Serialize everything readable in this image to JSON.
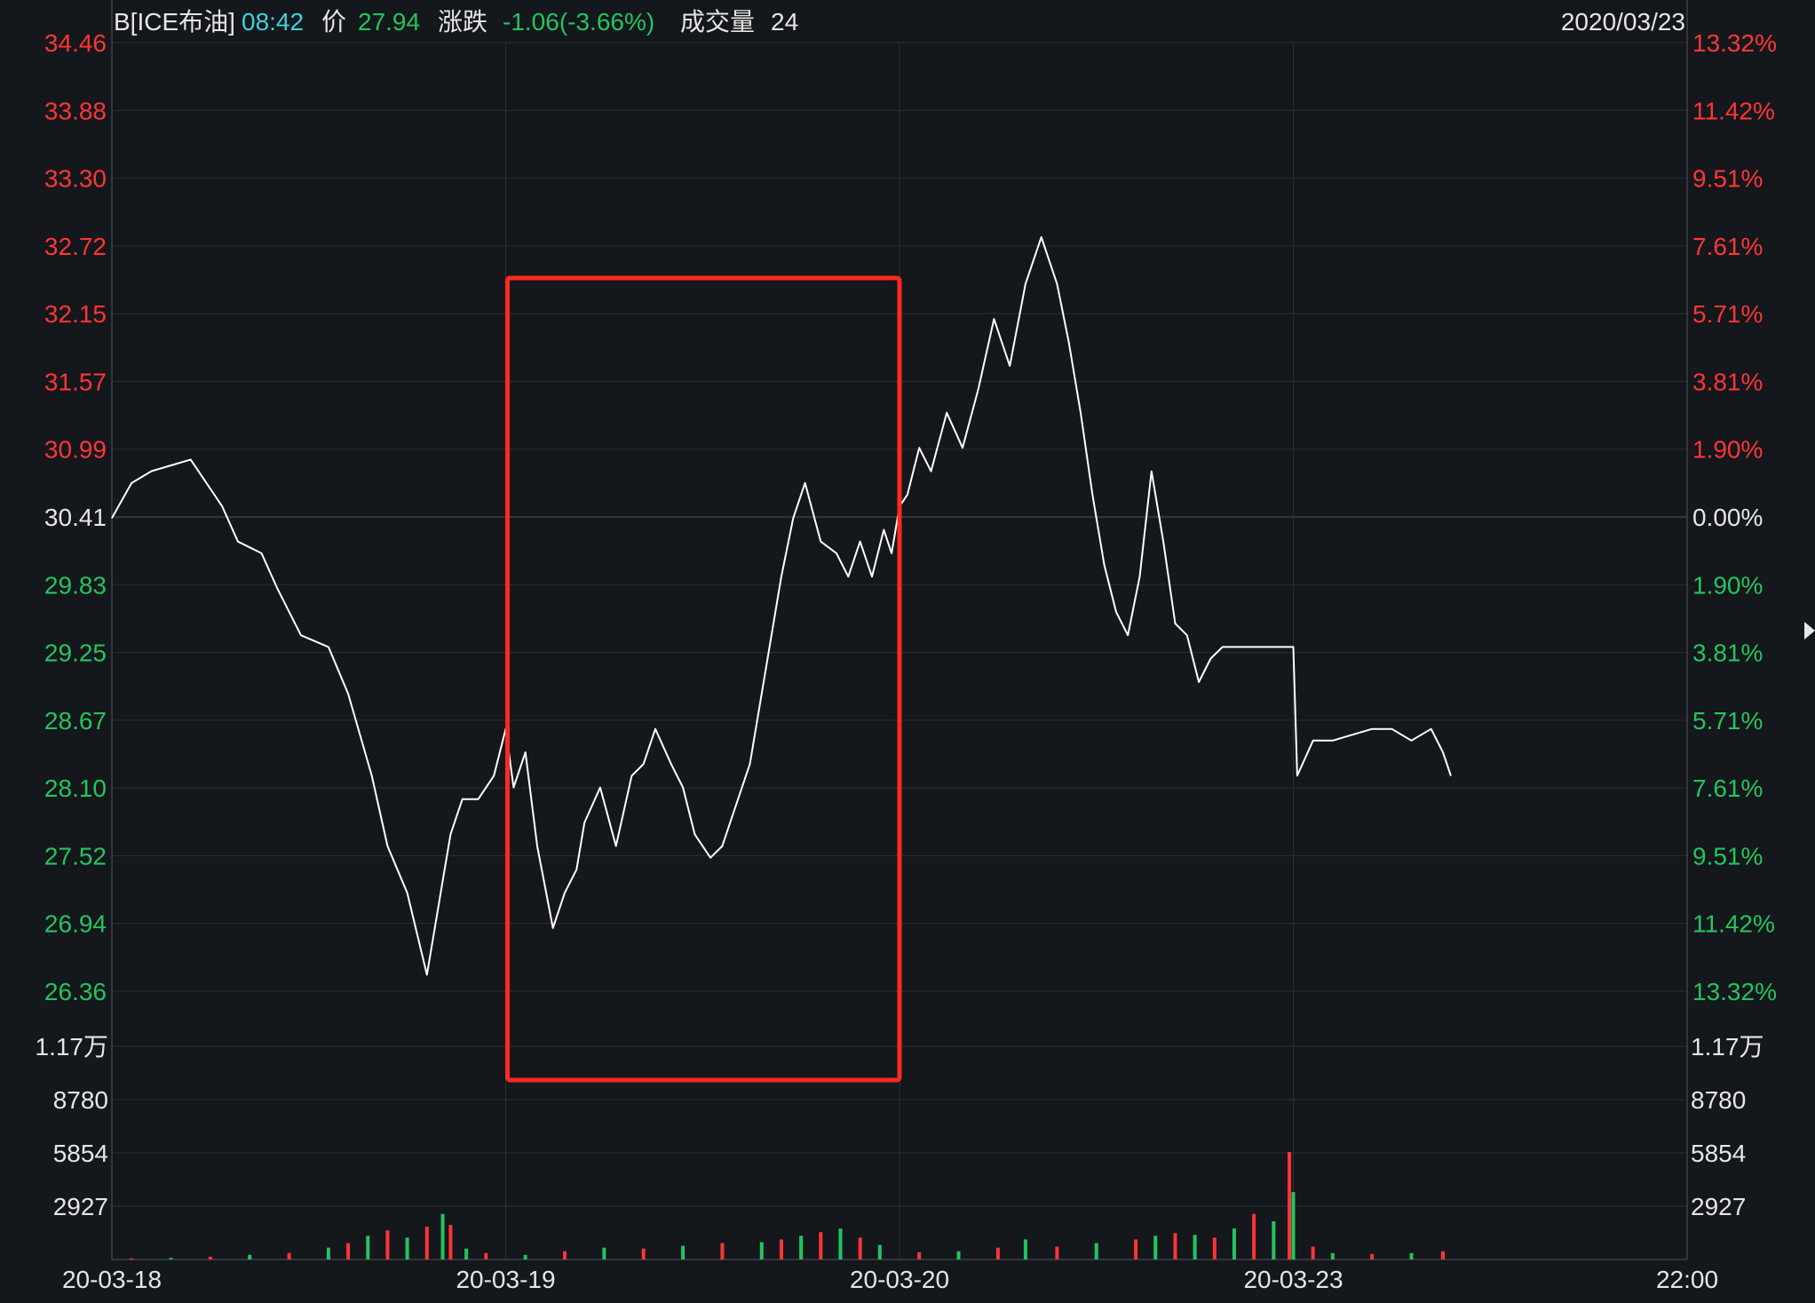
{
  "header": {
    "symbol": "B[ICE布油]",
    "time": "08:42",
    "price_label": "价",
    "price": "27.94",
    "change_label": "涨跌",
    "change": "-1.06(-3.66%)",
    "volume_label": "成交量",
    "volume": "24",
    "date": "2020/03/23"
  },
  "colors": {
    "background": "#14171c",
    "grid": "#2b2f36",
    "up": "#ff3535",
    "down": "#22c55e",
    "neutral": "#e6e6e6",
    "price_line": "#ffffff",
    "highlight_box": "#ff2a1f",
    "time_text": "#3fd1d9"
  },
  "annotation": {
    "type": "highlight-box",
    "x_start": "20-03-19",
    "x_end": "20-03-20"
  },
  "chart_data": [
    {
      "type": "line",
      "title": "",
      "y_ticks_left": [
        "34.46",
        "33.88",
        "33.30",
        "32.72",
        "32.15",
        "31.57",
        "30.99",
        "30.41",
        "29.83",
        "29.25",
        "28.67",
        "28.10",
        "27.52",
        "26.94",
        "26.36"
      ],
      "y_ticks_right": [
        "13.32%",
        "11.42%",
        "9.51%",
        "7.61%",
        "5.71%",
        "3.81%",
        "1.90%",
        "0.00%",
        "1.90%",
        "3.81%",
        "5.71%",
        "7.61%",
        "9.51%",
        "11.42%",
        "13.32%"
      ],
      "ylim": [
        26.36,
        34.46
      ],
      "reference_price": 30.41,
      "x_ticks": [
        "20-03-18",
        "20-03-19",
        "20-03-20",
        "20-03-23",
        "22:00"
      ],
      "xlim": [
        0,
        4
      ],
      "grid": true,
      "series": [
        {
          "x": [
            0.0,
            0.05,
            0.1,
            0.15,
            0.2,
            0.28,
            0.32,
            0.38,
            0.42,
            0.48,
            0.55,
            0.6,
            0.66,
            0.7,
            0.75,
            0.8,
            0.84,
            0.86,
            0.89,
            0.93,
            0.97,
            1.0,
            1.02,
            1.05,
            1.08,
            1.12,
            1.15,
            1.18,
            1.2,
            1.24,
            1.28,
            1.32,
            1.35,
            1.38,
            1.42,
            1.45,
            1.48,
            1.52,
            1.55,
            1.58,
            1.62,
            1.66,
            1.7,
            1.73,
            1.76,
            1.8,
            1.84,
            1.87,
            1.9,
            1.93,
            1.96,
            1.98,
            2.0,
            2.02,
            2.05,
            2.08,
            2.12,
            2.16,
            2.2,
            2.24,
            2.28,
            2.32,
            2.36,
            2.4,
            2.43,
            2.46,
            2.49,
            2.52,
            2.55,
            2.58,
            2.61,
            2.64,
            2.67,
            2.7,
            2.73,
            2.76,
            2.79,
            2.82,
            2.85,
            2.88,
            2.91,
            2.94,
            2.97,
            3.0,
            3.01,
            3.05,
            3.1,
            3.15,
            3.2,
            3.25,
            3.3,
            3.35,
            3.38,
            3.4
          ],
          "y": [
            30.4,
            30.7,
            30.8,
            30.85,
            30.9,
            30.5,
            30.2,
            30.1,
            29.8,
            29.4,
            29.3,
            28.9,
            28.2,
            27.6,
            27.2,
            26.5,
            27.3,
            27.7,
            28.0,
            28.0,
            28.2,
            28.6,
            28.1,
            28.4,
            27.6,
            26.9,
            27.2,
            27.4,
            27.8,
            28.1,
            27.6,
            28.2,
            28.3,
            28.6,
            28.3,
            28.1,
            27.7,
            27.5,
            27.6,
            27.9,
            28.3,
            29.1,
            29.9,
            30.4,
            30.7,
            30.2,
            30.1,
            29.9,
            30.2,
            29.9,
            30.3,
            30.1,
            30.5,
            30.6,
            31.0,
            30.8,
            31.3,
            31.0,
            31.5,
            32.1,
            31.7,
            32.4,
            32.8,
            32.4,
            31.9,
            31.3,
            30.6,
            30.0,
            29.6,
            29.4,
            29.9,
            30.8,
            30.2,
            29.5,
            29.4,
            29.0,
            29.2,
            29.3,
            29.3,
            29.3,
            29.3,
            29.3,
            29.3,
            29.3,
            28.2,
            28.5,
            28.5,
            28.55,
            28.6,
            28.6,
            28.5,
            28.6,
            28.4,
            28.2
          ]
        }
      ]
    },
    {
      "type": "bar",
      "title": "",
      "y_ticks_left": [
        "1.17万",
        "8780",
        "5854",
        "2927"
      ],
      "y_ticks_right": [
        "1.17万",
        "8780",
        "5854",
        "2927"
      ],
      "ylim": [
        0,
        11707
      ],
      "x_ticks": [
        "20-03-18",
        "20-03-19",
        "20-03-20",
        "20-03-23",
        "22:00"
      ],
      "xlim": [
        0,
        4
      ],
      "series": [
        {
          "name": "",
          "x": [
            0.05,
            0.15,
            0.25,
            0.35,
            0.45,
            0.55,
            0.6,
            0.65,
            0.7,
            0.75,
            0.8,
            0.84,
            0.86,
            0.9,
            0.95,
            1.05,
            1.15,
            1.25,
            1.35,
            1.45,
            1.55,
            1.65,
            1.7,
            1.75,
            1.8,
            1.85,
            1.9,
            1.95,
            2.05,
            2.15,
            2.25,
            2.32,
            2.4,
            2.5,
            2.6,
            2.65,
            2.7,
            2.75,
            2.8,
            2.85,
            2.9,
            2.95,
            2.99,
            3.0,
            3.05,
            3.1,
            3.2,
            3.3,
            3.38
          ],
          "values": [
            60,
            90,
            150,
            260,
            360,
            650,
            900,
            1300,
            1600,
            1200,
            1800,
            2500,
            1900,
            600,
            350,
            250,
            450,
            650,
            600,
            750,
            900,
            950,
            1100,
            1300,
            1500,
            1700,
            1200,
            800,
            400,
            450,
            650,
            1100,
            700,
            900,
            1100,
            1300,
            1450,
            1350,
            1200,
            1700,
            2500,
            2100,
            5900,
            3700,
            700,
            350,
            300,
            350,
            450
          ]
        }
      ]
    }
  ]
}
